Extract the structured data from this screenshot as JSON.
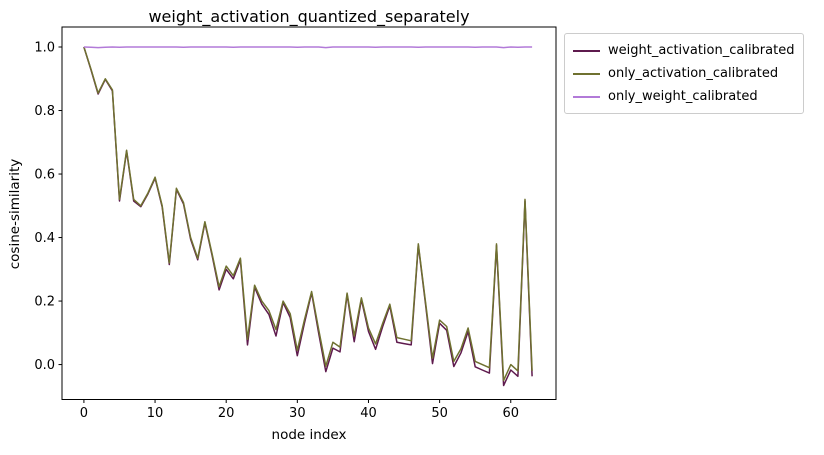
{
  "figure": {
    "title": "weight_activation_quantized_separately"
  },
  "chart_data": {
    "type": "line",
    "title": "weight_activation_quantized_separately",
    "xlabel": "node index",
    "ylabel": "cosine-similarity",
    "grid": false,
    "legend_position": "outside upper right",
    "x_ticks": [
      0,
      10,
      20,
      30,
      40,
      50,
      60
    ],
    "y_ticks": [
      0.0,
      0.2,
      0.4,
      0.6,
      0.8,
      1.0
    ],
    "xlim": [
      -3.08,
      66.36
    ],
    "ylim": [
      -0.11,
      1.063
    ],
    "x": [
      0,
      1,
      2,
      3,
      4,
      5,
      6,
      7,
      8,
      9,
      10,
      11,
      12,
      13,
      14,
      15,
      16,
      17,
      18,
      19,
      20,
      21,
      22,
      23,
      24,
      25,
      26,
      27,
      28,
      29,
      30,
      31,
      32,
      33,
      34,
      35,
      36,
      37,
      38,
      39,
      40,
      41,
      42,
      43,
      44,
      45,
      46,
      47,
      48,
      49,
      50,
      51,
      52,
      53,
      54,
      55,
      56,
      57,
      58,
      59,
      60,
      61,
      62,
      63
    ],
    "series": [
      {
        "name": "weight_activation_calibrated",
        "color": "#5e1a4d",
        "values": [
          1.0,
          0.928,
          0.852,
          0.898,
          0.862,
          0.515,
          0.672,
          0.515,
          0.497,
          0.537,
          0.587,
          0.496,
          0.315,
          0.552,
          0.506,
          0.395,
          0.33,
          0.446,
          0.345,
          0.235,
          0.3,
          0.27,
          0.33,
          0.062,
          0.244,
          0.19,
          0.158,
          0.09,
          0.195,
          0.148,
          0.028,
          0.13,
          0.226,
          0.098,
          -0.022,
          0.052,
          0.04,
          0.221,
          0.072,
          0.205,
          0.104,
          0.048,
          0.12,
          0.185,
          0.07,
          0.066,
          0.062,
          0.376,
          0.194,
          0.003,
          0.13,
          0.108,
          -0.006,
          0.037,
          0.104,
          -0.007,
          -0.017,
          -0.027,
          0.375,
          -0.066,
          -0.017,
          -0.037,
          0.515,
          -0.037
        ]
      },
      {
        "name": "only_activation_calibrated",
        "color": "#6f7130",
        "values": [
          1.0,
          0.93,
          0.855,
          0.9,
          0.865,
          0.52,
          0.675,
          0.52,
          0.5,
          0.54,
          0.59,
          0.5,
          0.32,
          0.555,
          0.51,
          0.4,
          0.335,
          0.45,
          0.35,
          0.245,
          0.31,
          0.28,
          0.335,
          0.08,
          0.25,
          0.2,
          0.17,
          0.11,
          0.2,
          0.16,
          0.045,
          0.14,
          0.23,
          0.11,
          -0.005,
          0.07,
          0.055,
          0.225,
          0.09,
          0.21,
          0.115,
          0.065,
          0.13,
          0.19,
          0.085,
          0.08,
          0.075,
          0.38,
          0.2,
          0.02,
          0.14,
          0.12,
          0.01,
          0.05,
          0.115,
          0.01,
          0.0,
          -0.01,
          0.38,
          -0.05,
          0.0,
          -0.02,
          0.52,
          -0.02
        ]
      },
      {
        "name": "only_weight_calibrated",
        "color": "#b27ad8",
        "values": [
          1.0,
          0.999,
          0.998,
          0.999,
          1.0,
          0.999,
          1.0,
          1.0,
          1.0,
          1.0,
          1.0,
          1.0,
          1.0,
          1.0,
          0.999,
          1.0,
          1.0,
          1.0,
          1.0,
          1.0,
          1.0,
          0.999,
          1.0,
          1.0,
          1.0,
          1.0,
          1.0,
          1.0,
          1.0,
          1.0,
          0.999,
          1.0,
          1.0,
          1.0,
          0.998,
          1.0,
          1.0,
          1.0,
          1.0,
          1.0,
          1.0,
          0.999,
          1.0,
          1.0,
          1.0,
          1.0,
          1.0,
          0.999,
          1.0,
          1.0,
          1.0,
          1.0,
          1.0,
          1.0,
          1.0,
          0.999,
          1.0,
          1.0,
          1.0,
          0.998,
          1.0,
          0.999,
          1.0,
          1.0
        ]
      }
    ]
  }
}
